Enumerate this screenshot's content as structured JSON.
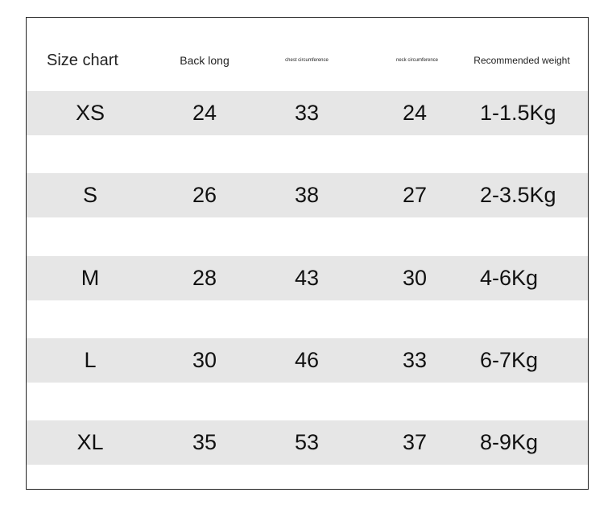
{
  "headers": [
    "Size chart",
    "Back long",
    "chest circumference",
    "neck circumference",
    "Recommended weight"
  ],
  "rows": [
    [
      "XS",
      "24",
      "33",
      "24",
      "1-1.5Kg"
    ],
    [
      "S",
      "26",
      "38",
      "27",
      "2-3.5Kg"
    ],
    [
      "M",
      "28",
      "43",
      "30",
      "4-6Kg"
    ],
    [
      "L",
      "30",
      "46",
      "33",
      "6-7Kg"
    ],
    [
      "XL",
      "35",
      "53",
      "37",
      "8-9Kg"
    ]
  ],
  "colors": {
    "band": "#e6e6e6",
    "border": "#222222"
  }
}
